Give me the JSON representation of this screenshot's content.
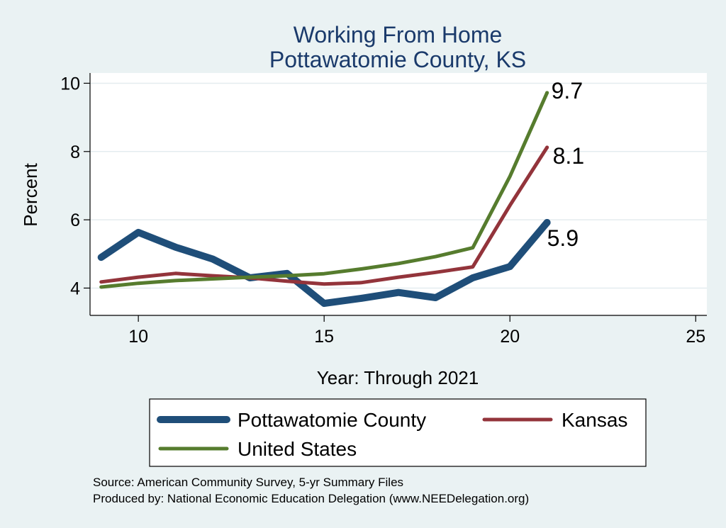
{
  "chart_data": {
    "type": "line",
    "title": "Working From Home",
    "subtitle": "Pottawatomie County, KS",
    "xlabel": "Year: Through 2021",
    "ylabel": "Percent",
    "xlim": [
      8.7,
      25.3
    ],
    "ylim": [
      3.2,
      10.3
    ],
    "xticks": [
      10,
      15,
      20,
      25
    ],
    "yticks": [
      4,
      6,
      8,
      10
    ],
    "grid": true,
    "legend_position": "bottom",
    "series": [
      {
        "name": "Pottawatomie County",
        "color": "#1f4e79",
        "width": 10,
        "x": [
          9,
          10,
          11,
          12,
          13,
          14,
          15,
          16,
          17,
          18,
          19,
          20,
          21
        ],
        "y": [
          4.9,
          5.63,
          5.2,
          4.85,
          4.3,
          4.43,
          3.55,
          3.7,
          3.87,
          3.72,
          4.3,
          4.63,
          5.92
        ],
        "end_label": "5.9"
      },
      {
        "name": "Kansas",
        "color": "#93343b",
        "width": 5,
        "x": [
          9,
          10,
          11,
          12,
          13,
          14,
          15,
          16,
          17,
          18,
          19,
          20,
          21
        ],
        "y": [
          4.18,
          4.32,
          4.43,
          4.36,
          4.3,
          4.2,
          4.12,
          4.16,
          4.32,
          4.46,
          4.62,
          6.42,
          8.12
        ],
        "end_label": "8.1"
      },
      {
        "name": "United States",
        "color": "#567c2e",
        "width": 5,
        "x": [
          9,
          10,
          11,
          12,
          13,
          14,
          15,
          16,
          17,
          18,
          19,
          20,
          21
        ],
        "y": [
          4.03,
          4.14,
          4.22,
          4.27,
          4.32,
          4.36,
          4.42,
          4.56,
          4.72,
          4.92,
          5.18,
          7.27,
          9.72
        ],
        "end_label": "9.7"
      }
    ]
  },
  "source": {
    "line1": "Source: American Community Survey, 5-yr Summary Files",
    "line2": "Produced by: National Economic Education Delegation (www.NEEDelegation.org)"
  }
}
